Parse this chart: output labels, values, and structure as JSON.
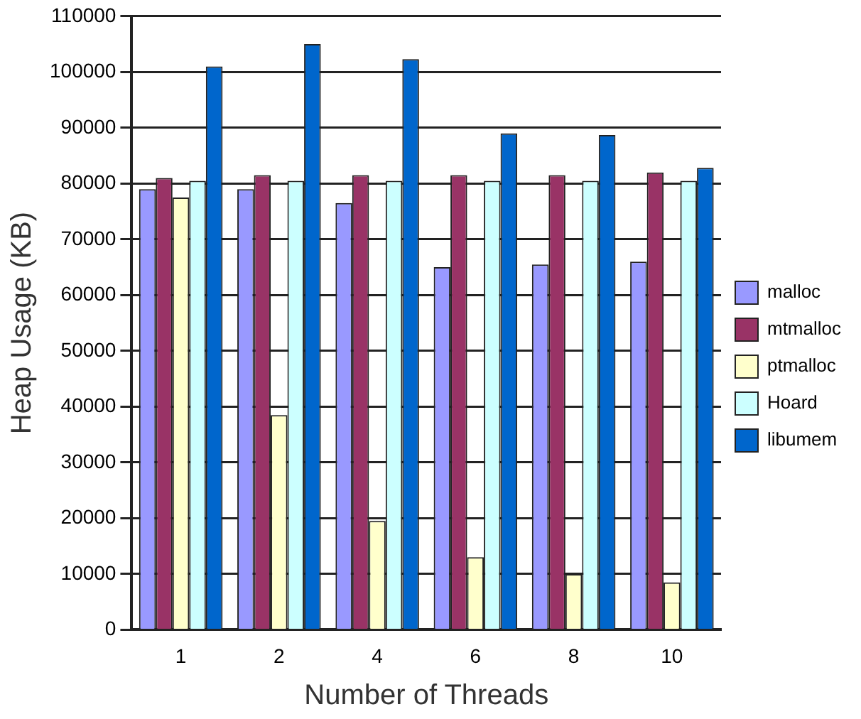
{
  "chart_data": {
    "type": "bar",
    "xlabel": "Number of Threads",
    "ylabel": "Heap Usage (KB)",
    "categories": [
      "1",
      "2",
      "4",
      "6",
      "8",
      "10"
    ],
    "series": [
      {
        "name": "malloc",
        "color": "#9999ff",
        "values": [
          79000,
          79000,
          76500,
          65000,
          65500,
          66000
        ]
      },
      {
        "name": "mtmalloc",
        "color": "#993366",
        "values": [
          81000,
          81500,
          81500,
          81500,
          81500,
          82000
        ]
      },
      {
        "name": "ptmalloc",
        "color": "#ffffcc",
        "values": [
          77500,
          38500,
          19500,
          13000,
          10000,
          8500
        ]
      },
      {
        "name": "Hoard",
        "color": "#ccffff",
        "values": [
          80500,
          80500,
          80500,
          80500,
          80500,
          80500
        ]
      },
      {
        "name": "libumem",
        "color": "#0066cc",
        "values": [
          101000,
          105000,
          102300,
          89000,
          88700,
          82800
        ]
      }
    ],
    "ylim": [
      0,
      110000
    ],
    "yticks": [
      0,
      10000,
      20000,
      30000,
      40000,
      50000,
      60000,
      70000,
      80000,
      90000,
      100000,
      110000
    ],
    "grid": "y",
    "legend": "right"
  }
}
